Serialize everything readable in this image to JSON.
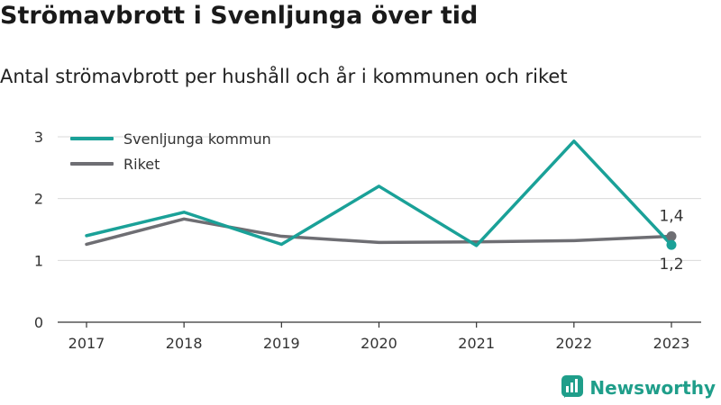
{
  "page": {
    "title": "Strömavbrott i Svenljunga över tid",
    "subtitle": "Antal strömavbrott per hushåll och år i kommunen och riket",
    "brand": "Newsworthy",
    "brand_icon": "newsworthy-logo-icon"
  },
  "chart_data": {
    "type": "line",
    "title": "Strömavbrott i Svenljunga över tid",
    "subtitle": "Antal strömavbrott per hushåll och år i kommunen och riket",
    "x": [
      "2017",
      "2018",
      "2019",
      "2020",
      "2021",
      "2022",
      "2023"
    ],
    "ylim": [
      0,
      3
    ],
    "yticks": [
      "0",
      "1",
      "2",
      "3"
    ],
    "grid": true,
    "legend": "top-left",
    "series": [
      {
        "name": "Svenljunga kommun",
        "color": "#1aa198",
        "values": [
          1.4,
          1.78,
          1.26,
          2.2,
          1.24,
          2.93,
          1.25
        ],
        "end_label": "1,2"
      },
      {
        "name": "Riket",
        "color": "#6e6e73",
        "values": [
          1.26,
          1.67,
          1.39,
          1.29,
          1.3,
          1.32,
          1.39
        ],
        "end_label": "1,4"
      }
    ]
  }
}
